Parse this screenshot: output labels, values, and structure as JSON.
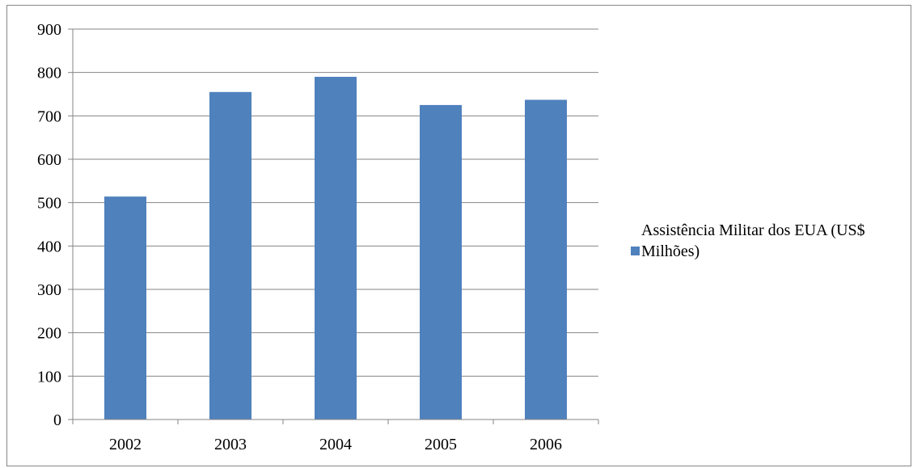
{
  "chart_data": {
    "type": "bar",
    "categories": [
      "2002",
      "2003",
      "2004",
      "2005",
      "2006"
    ],
    "series": [
      {
        "name": "Assistência Militar dos EUA (US$ Milhões)",
        "values": [
          514,
          755,
          790,
          725,
          737
        ],
        "color": "#4f81bd"
      }
    ],
    "title": "",
    "xlabel": "",
    "ylabel": "",
    "ylim": [
      0,
      900
    ],
    "yticks": [
      "0",
      "100",
      "200",
      "300",
      "400",
      "500",
      "600",
      "700",
      "800",
      "900"
    ],
    "grid": true,
    "legend_position": "right"
  }
}
